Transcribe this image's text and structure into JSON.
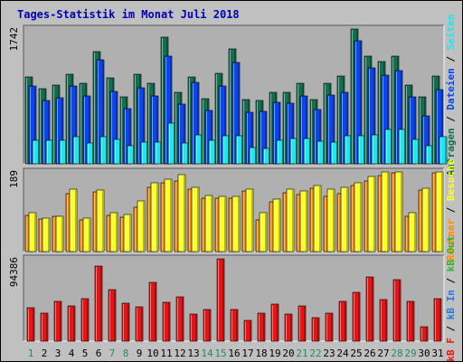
{
  "title": "Tages-Statistik im Monat Juli 2018",
  "colors": {
    "background": "#c0c0c0",
    "panel": "#b0b0b0",
    "title": "#0000b4",
    "anfragen": "#146e50",
    "dateien": "#0a46ee",
    "seiten": "#1ee6f0",
    "rechner": "#ff8c00",
    "besuche": "#ffff28",
    "kb_f": "#e61414",
    "kb_in": "#2878dc",
    "kb_out": "#32b432",
    "weekend_day": "#1e8c64",
    "weekday_day": "#000000"
  },
  "chart_data": [
    {
      "type": "bar",
      "panel": "top",
      "axis_max_label": "1742",
      "ylim": [
        0,
        1742
      ],
      "categories": [
        "1",
        "2",
        "3",
        "4",
        "5",
        "6",
        "7",
        "8",
        "9",
        "10",
        "11",
        "12",
        "13",
        "14",
        "15",
        "16",
        "17",
        "18",
        "19",
        "20",
        "21",
        "22",
        "23",
        "24",
        "25",
        "26",
        "27",
        "28",
        "29",
        "30",
        "31"
      ],
      "series": [
        {
          "name": "Anfragen",
          "color": "#146e50",
          "values": [
            1121,
            970,
            1013,
            1160,
            1040,
            1455,
            1112,
            862,
            1155,
            1042,
            1631,
            923,
            1126,
            846,
            1170,
            1490,
            832,
            818,
            924,
            926,
            1039,
            830,
            1040,
            1130,
            1742,
            1386,
            1316,
            1390,
            1020,
            860,
            1132
          ]
        },
        {
          "name": "Dateien",
          "color": "#0a46ee",
          "values": [
            1003,
            820,
            855,
            1002,
            881,
            1342,
            930,
            710,
            987,
            876,
            1392,
            772,
            1047,
            695,
            1004,
            1312,
            672,
            673,
            790,
            788,
            882,
            697,
            883,
            919,
            1592,
            1240,
            1149,
            1203,
            862,
            616,
            961
          ]
        },
        {
          "name": "Seiten",
          "color": "#1ee6f0",
          "values": [
            299,
            299,
            299,
            350,
            273,
            345,
            312,
            235,
            286,
            277,
            525,
            264,
            370,
            304,
            362,
            368,
            212,
            200,
            303,
            330,
            329,
            298,
            276,
            365,
            364,
            371,
            439,
            445,
            311,
            230,
            345
          ]
        }
      ]
    },
    {
      "type": "bar",
      "panel": "middle",
      "axis_max_label": "189",
      "ylim": [
        0,
        189
      ],
      "categories": [
        "1",
        "2",
        "3",
        "4",
        "5",
        "6",
        "7",
        "8",
        "9",
        "10",
        "11",
        "12",
        "13",
        "14",
        "15",
        "16",
        "17",
        "18",
        "19",
        "20",
        "21",
        "22",
        "23",
        "24",
        "25",
        "26",
        "27",
        "28",
        "29",
        "30",
        "31"
      ],
      "series": [
        {
          "name": "Rechner",
          "color": "#ff8c00",
          "values": [
            85,
            77,
            83,
            138,
            76,
            141,
            85,
            82,
            106,
            153,
            163,
            167,
            148,
            126,
            127,
            126,
            143,
            76,
            118,
            140,
            135,
            150,
            132,
            138,
            156,
            167,
            181,
            186,
            83,
            146,
            186
          ]
        },
        {
          "name": "Besuche",
          "color": "#ffff28",
          "values": [
            92,
            80,
            84,
            149,
            80,
            146,
            93,
            89,
            120,
            163,
            171,
            182,
            153,
            133,
            132,
            131,
            149,
            92,
            125,
            149,
            143,
            156,
            149,
            153,
            163,
            178,
            189,
            189,
            92,
            151,
            189
          ]
        }
      ]
    },
    {
      "type": "bar",
      "panel": "bottom",
      "axis_max_label": "94386",
      "ylim": [
        0,
        94386
      ],
      "categories": [
        "1",
        "2",
        "3",
        "4",
        "5",
        "6",
        "7",
        "8",
        "9",
        "10",
        "11",
        "12",
        "13",
        "14",
        "15",
        "16",
        "17",
        "18",
        "19",
        "20",
        "21",
        "22",
        "23",
        "24",
        "25",
        "26",
        "27",
        "28",
        "29",
        "30",
        "31"
      ],
      "series": [
        {
          "name": "KB F",
          "color": "#e61414",
          "values": [
            38600,
            32100,
            45900,
            40100,
            48800,
            85700,
            58800,
            44000,
            39700,
            67800,
            44600,
            50600,
            30900,
            36300,
            94386,
            36800,
            24300,
            32100,
            42100,
            31000,
            40900,
            27100,
            32100,
            45700,
            55900,
            73200,
            47200,
            71000,
            45800,
            17100,
            48800
          ]
        }
      ]
    }
  ],
  "side_labels": {
    "top": [
      {
        "text": "Anfragen",
        "color": "#146e50"
      },
      {
        "text": " / ",
        "color": "#000000"
      },
      {
        "text": "Dateien",
        "color": "#0a46ee"
      },
      {
        "text": " / ",
        "color": "#000000"
      },
      {
        "text": "Seiten",
        "color": "#1ee6f0"
      }
    ],
    "middle": [
      {
        "text": "Rechner",
        "color": "#ff8c00"
      },
      {
        "text": " / ",
        "color": "#000000"
      },
      {
        "text": "Besuche",
        "color": "#ffff28"
      }
    ],
    "bottom": [
      {
        "text": "kB F",
        "color": "#e61414"
      },
      {
        "text": " / ",
        "color": "#000000"
      },
      {
        "text": "kB In",
        "color": "#2878dc"
      },
      {
        "text": " / ",
        "color": "#000000"
      },
      {
        "text": "kB Out",
        "color": "#32b432"
      }
    ]
  },
  "weekend_days": [
    1,
    7,
    8,
    14,
    15,
    21,
    22,
    28,
    29
  ]
}
